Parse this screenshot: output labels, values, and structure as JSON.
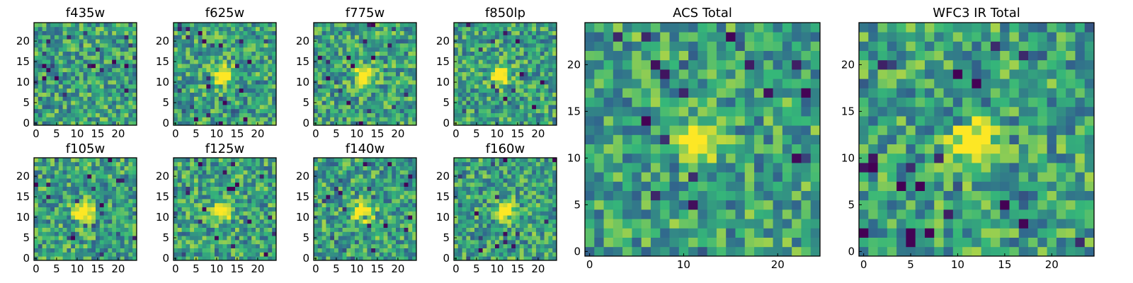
{
  "chart_data": [
    {
      "type": "heatmap",
      "title": "f435w",
      "grid_size": 25,
      "xticks": [
        0,
        5,
        10,
        15,
        20
      ],
      "yticks": [
        0,
        5,
        10,
        15,
        20
      ],
      "source_peak": null,
      "colormap": [
        "#440154",
        "#31688e",
        "#35b779",
        "#fde725"
      ]
    },
    {
      "type": "heatmap",
      "title": "f625w",
      "grid_size": 25,
      "xticks": [
        0,
        5,
        10,
        15,
        20
      ],
      "yticks": [
        0,
        5,
        10,
        15,
        20
      ],
      "source_peak": [
        12,
        12
      ],
      "colormap": [
        "#440154",
        "#31688e",
        "#35b779",
        "#fde725"
      ]
    },
    {
      "type": "heatmap",
      "title": "f775w",
      "grid_size": 25,
      "xticks": [
        0,
        5,
        10,
        15,
        20
      ],
      "yticks": [
        0,
        5,
        10,
        15,
        20
      ],
      "source_peak": [
        12,
        12
      ],
      "colormap": [
        "#440154",
        "#31688e",
        "#35b779",
        "#fde725"
      ]
    },
    {
      "type": "heatmap",
      "title": "f850lp",
      "grid_size": 25,
      "xticks": [
        0,
        5,
        10,
        15,
        20
      ],
      "yticks": [
        0,
        5,
        10,
        15,
        20
      ],
      "source_peak": [
        11,
        12
      ],
      "colormap": [
        "#440154",
        "#31688e",
        "#35b779",
        "#fde725"
      ]
    },
    {
      "type": "heatmap",
      "title": "f105w",
      "grid_size": 25,
      "xticks": [
        0,
        5,
        10,
        15,
        20
      ],
      "yticks": [
        0,
        5,
        10,
        15,
        20
      ],
      "source_peak": [
        12,
        12
      ],
      "colormap": [
        "#440154",
        "#31688e",
        "#35b779",
        "#fde725"
      ]
    },
    {
      "type": "heatmap",
      "title": "f125w",
      "grid_size": 25,
      "xticks": [
        0,
        5,
        10,
        15,
        20
      ],
      "yticks": [
        0,
        5,
        10,
        15,
        20
      ],
      "source_peak": [
        12,
        12
      ],
      "colormap": [
        "#440154",
        "#31688e",
        "#35b779",
        "#fde725"
      ]
    },
    {
      "type": "heatmap",
      "title": "f140w",
      "grid_size": 25,
      "xticks": [
        0,
        5,
        10,
        15,
        20
      ],
      "yticks": [
        0,
        5,
        10,
        15,
        20
      ],
      "source_peak": [
        12,
        12
      ],
      "colormap": [
        "#440154",
        "#31688e",
        "#35b779",
        "#fde725"
      ]
    },
    {
      "type": "heatmap",
      "title": "f160w",
      "grid_size": 25,
      "xticks": [
        0,
        5,
        10,
        15,
        20
      ],
      "yticks": [
        0,
        5,
        10,
        15,
        20
      ],
      "source_peak": [
        12,
        12
      ],
      "colormap": [
        "#440154",
        "#31688e",
        "#35b779",
        "#fde725"
      ]
    },
    {
      "type": "heatmap",
      "title": "ACS Total",
      "grid_size": 25,
      "xticks": [
        0,
        10,
        20
      ],
      "yticks": [
        0,
        5,
        10,
        15,
        20
      ],
      "source_peak": [
        12,
        12
      ],
      "colormap": [
        "#440154",
        "#31688e",
        "#35b779",
        "#fde725"
      ]
    },
    {
      "type": "heatmap",
      "title": "WFC3 IR Total",
      "grid_size": 25,
      "xticks": [
        0,
        5,
        10,
        15,
        20
      ],
      "yticks": [
        0,
        5,
        10,
        15,
        20
      ],
      "source_peak": [
        12,
        12
      ],
      "colormap": [
        "#440154",
        "#31688e",
        "#35b779",
        "#fde725"
      ]
    }
  ]
}
